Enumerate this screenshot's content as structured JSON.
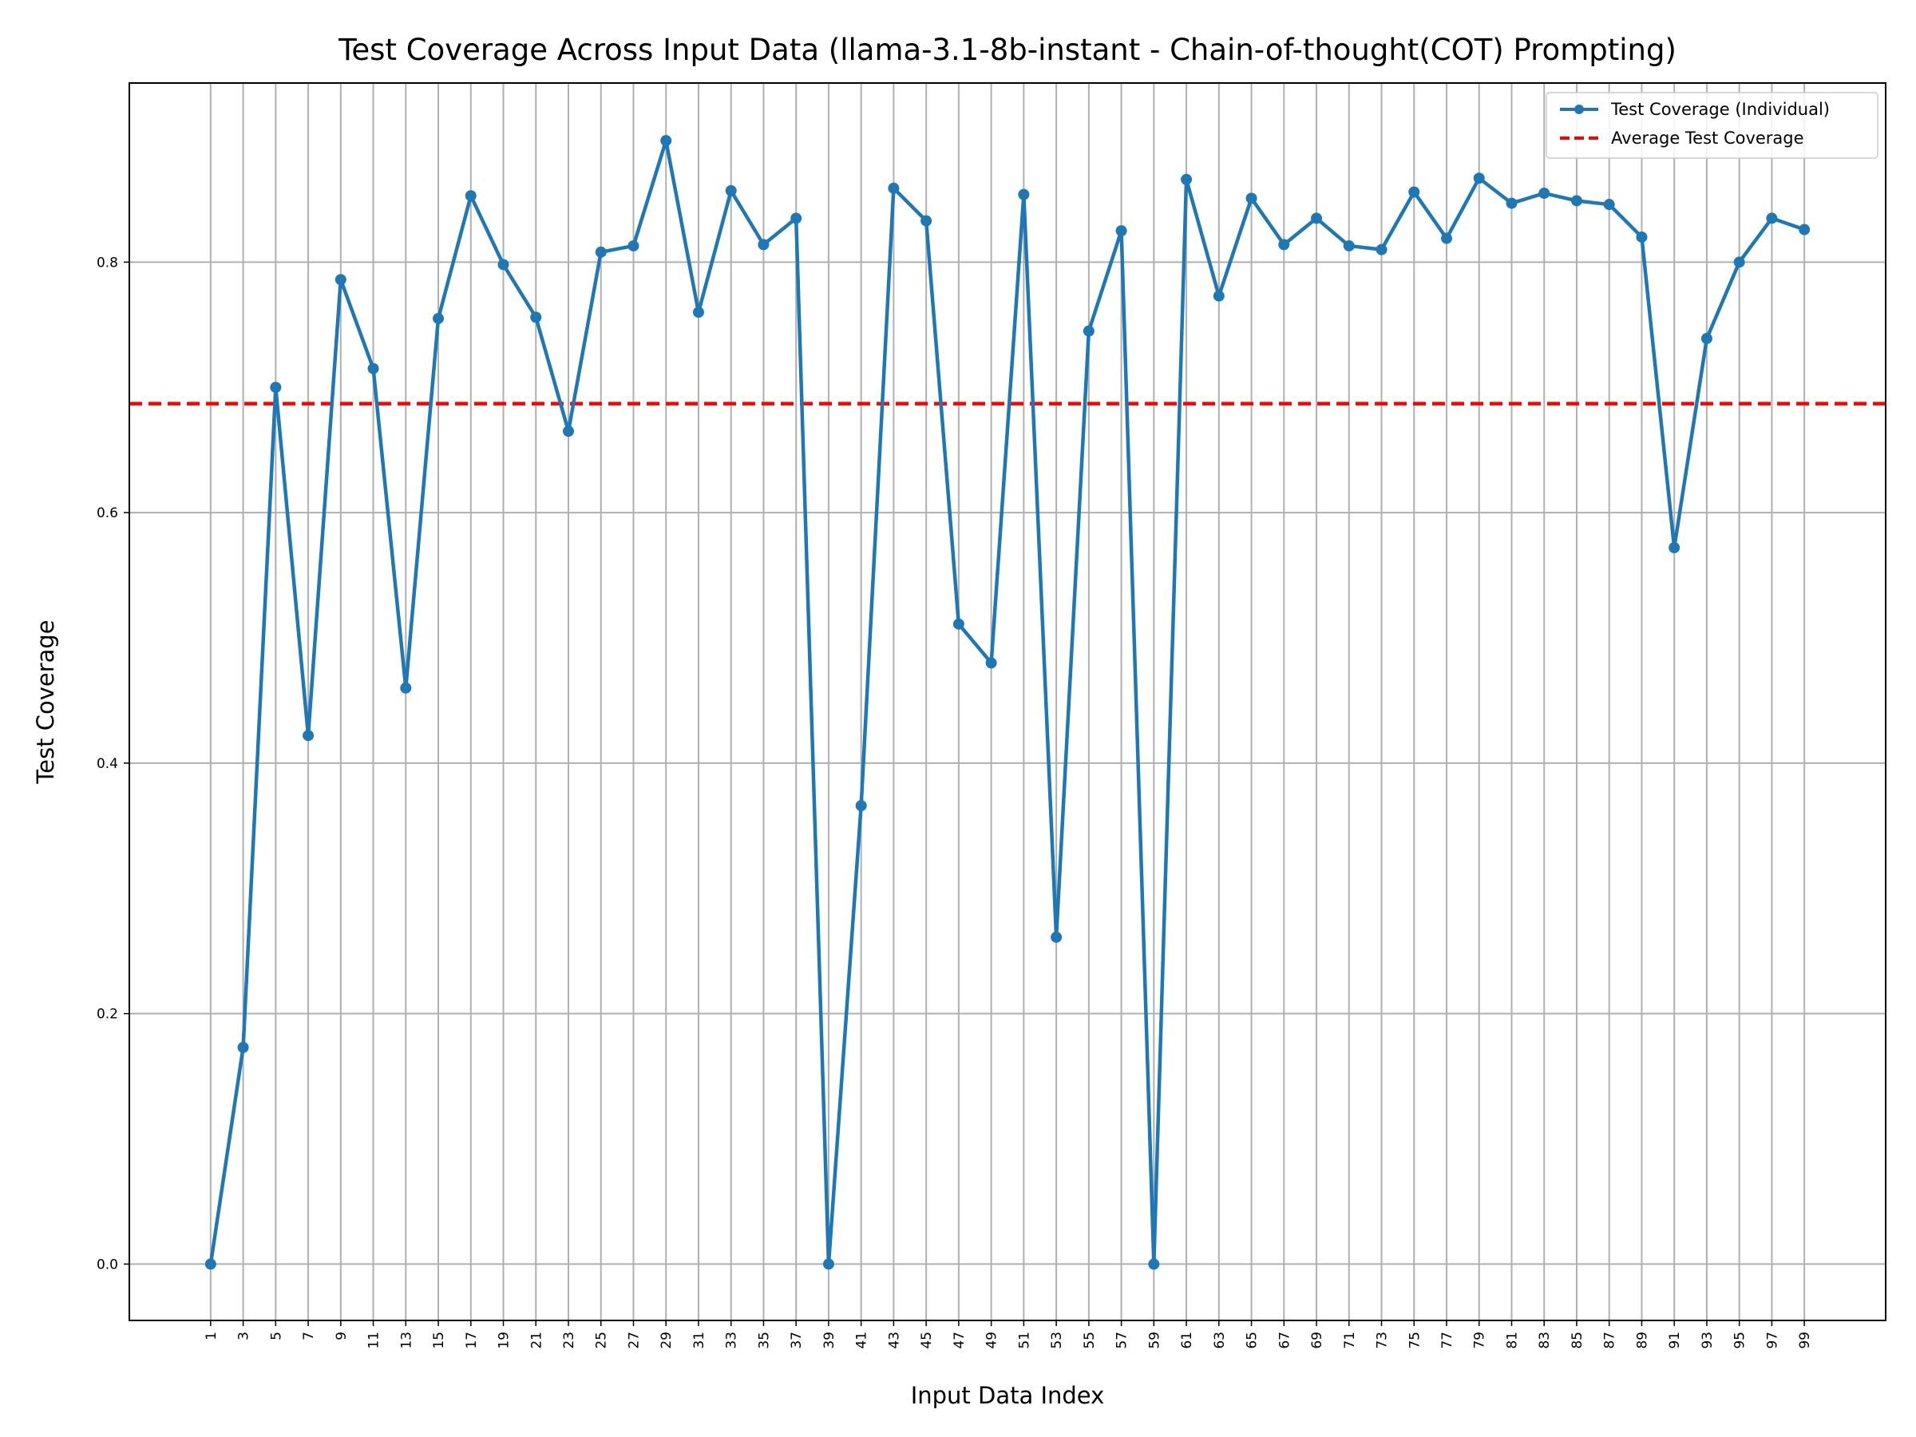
{
  "chart_data": {
    "type": "line",
    "title": "Test Coverage Across Input Data (llama-3.1-8b-instant - Chain-of-thought(COT) Prompting)",
    "xlabel": "Input Data Index",
    "ylabel": "Test Coverage",
    "x": [
      1,
      3,
      5,
      7,
      9,
      11,
      13,
      15,
      17,
      19,
      21,
      23,
      25,
      27,
      29,
      31,
      33,
      35,
      37,
      39,
      41,
      43,
      45,
      47,
      49,
      51,
      53,
      55,
      57,
      59,
      61,
      63,
      65,
      67,
      69,
      71,
      73,
      75,
      77,
      79,
      81,
      83,
      85,
      87,
      89,
      91,
      93,
      95,
      97,
      99
    ],
    "xlim": [
      -4,
      104
    ],
    "ylim": [
      -0.045,
      0.943
    ],
    "yticks": [
      0.0,
      0.2,
      0.4,
      0.6,
      0.8
    ],
    "ytick_labels": [
      "0.0",
      "0.2",
      "0.4",
      "0.6",
      "0.8"
    ],
    "xtick_labels": [
      "1",
      "3",
      "5",
      "7",
      "9",
      "11",
      "13",
      "15",
      "17",
      "19",
      "21",
      "23",
      "25",
      "27",
      "29",
      "31",
      "33",
      "35",
      "37",
      "39",
      "41",
      "43",
      "45",
      "47",
      "49",
      "51",
      "53",
      "55",
      "57",
      "59",
      "61",
      "63",
      "65",
      "67",
      "69",
      "71",
      "73",
      "75",
      "77",
      "79",
      "81",
      "83",
      "85",
      "87",
      "89",
      "91",
      "93",
      "95",
      "97",
      "99"
    ],
    "grid": true,
    "legend_position": "top-right",
    "series": [
      {
        "name": "Test Coverage (Individual)",
        "style": "line-marker",
        "color": "#1f77b4",
        "values": [
          0.0,
          0.173,
          0.7,
          0.422,
          0.786,
          0.715,
          0.46,
          0.755,
          0.853,
          0.798,
          0.756,
          0.665,
          0.808,
          0.813,
          0.897,
          0.76,
          0.857,
          0.814,
          0.835,
          0.0,
          0.366,
          0.859,
          0.833,
          0.511,
          0.48,
          0.854,
          0.261,
          0.745,
          0.825,
          0.0,
          0.866,
          0.773,
          0.851,
          0.814,
          0.835,
          0.813,
          0.81,
          0.856,
          0.819,
          0.867,
          0.847,
          0.855,
          0.849,
          0.846,
          0.82,
          0.572,
          0.739,
          0.8,
          0.835,
          0.826
        ]
      },
      {
        "name": "Average Test Coverage",
        "style": "dashed",
        "color": "#ff0000",
        "value": 0.687
      }
    ]
  }
}
